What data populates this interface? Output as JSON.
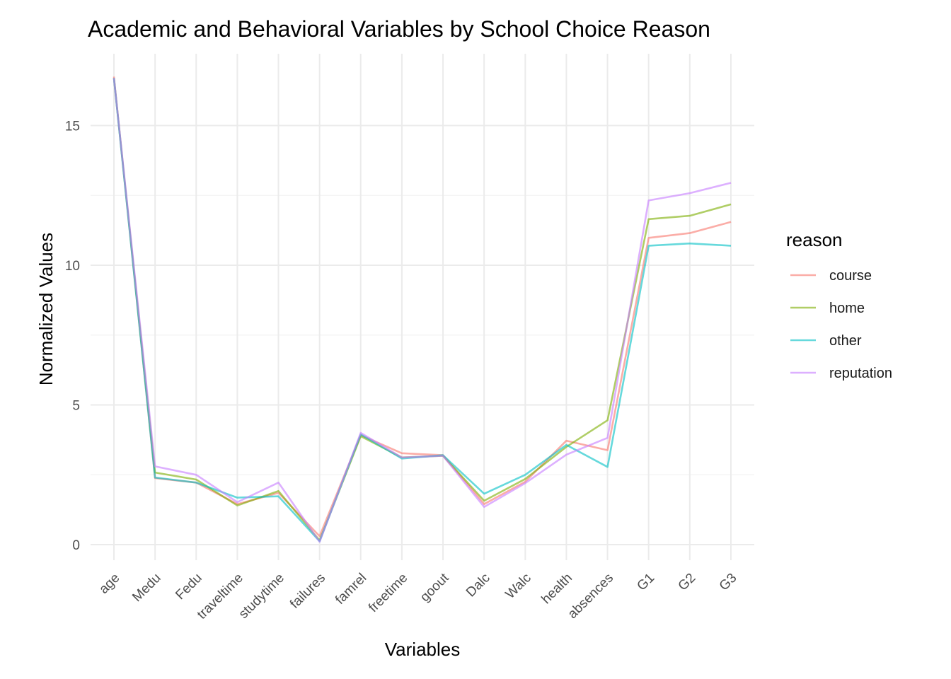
{
  "chart_data": {
    "type": "line",
    "title": "Academic and Behavioral Variables by School Choice Reason",
    "xlabel": "Variables",
    "ylabel": "Normalized Values",
    "categories": [
      "age",
      "Medu",
      "Fedu",
      "traveltime",
      "studytime",
      "failures",
      "famrel",
      "freetime",
      "goout",
      "Dalc",
      "Walc",
      "health",
      "absences",
      "G1",
      "G2",
      "G3"
    ],
    "ylim": [
      -0.6,
      17.2
    ],
    "yticks": [
      "0",
      "5",
      "10",
      "15"
    ],
    "ytick_values": [
      0,
      5,
      10,
      15
    ],
    "grid": true,
    "legend_title": "reason",
    "legend_position": "right",
    "series": [
      {
        "name": "course",
        "color": "#F8766D",
        "values": [
          16.75,
          2.38,
          2.22,
          1.45,
          1.85,
          0.3,
          3.92,
          3.27,
          3.2,
          1.45,
          2.25,
          3.72,
          3.38,
          10.98,
          11.15,
          11.55
        ]
      },
      {
        "name": "home",
        "color": "#7CAE00",
        "values": [
          16.7,
          2.58,
          2.33,
          1.4,
          1.92,
          0.15,
          3.88,
          3.12,
          3.18,
          1.57,
          2.35,
          3.5,
          4.45,
          11.65,
          11.77,
          12.18
        ]
      },
      {
        "name": "other",
        "color": "#00BFC4",
        "values": [
          16.7,
          2.4,
          2.22,
          1.68,
          1.73,
          0.12,
          3.95,
          3.08,
          3.2,
          1.82,
          2.5,
          3.57,
          2.78,
          10.7,
          10.78,
          10.7
        ]
      },
      {
        "name": "reputation",
        "color": "#C77CFF",
        "values": [
          16.7,
          2.8,
          2.5,
          1.52,
          2.22,
          0.1,
          4.0,
          3.12,
          3.18,
          1.35,
          2.2,
          3.22,
          3.82,
          12.32,
          12.58,
          12.95
        ]
      }
    ]
  }
}
